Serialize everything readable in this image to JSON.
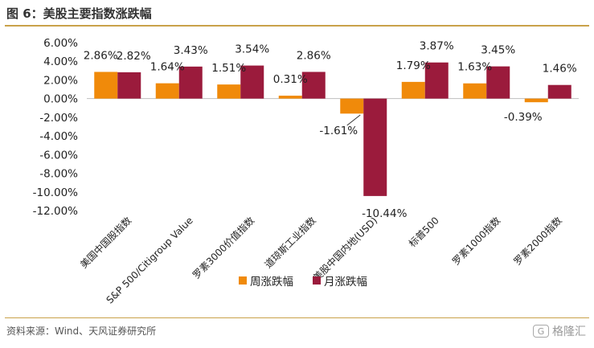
{
  "header": {
    "title": "图 6：美股主要指数涨跌幅"
  },
  "footer": {
    "source": "资料来源：Wind、天风证券研究所",
    "watermark": "格隆汇",
    "watermark_badge": "G"
  },
  "colors": {
    "weekly": "#f08a0a",
    "monthly": "#9b1b3c",
    "title_rule": "#c9a24a"
  },
  "chart_data": {
    "type": "bar",
    "categories": [
      "美国中国股指数",
      "S&P 500/Citigroup Value",
      "罗素3000价值指数",
      "道琼斯工业指数",
      "美股中国内地(USD)",
      "标普500",
      "罗素1000指数",
      "罗素2000指数"
    ],
    "series": [
      {
        "name": "周涨跌幅",
        "values": [
          2.86,
          1.64,
          1.51,
          0.31,
          -1.61,
          1.79,
          1.63,
          -0.39
        ],
        "labels": [
          "2.86%",
          "1.64%",
          "1.51%",
          "0.31%",
          "-1.61%",
          "1.79%",
          "1.63%",
          "-0.39%"
        ]
      },
      {
        "name": "月涨跌幅",
        "values": [
          2.82,
          3.43,
          3.54,
          2.86,
          -10.44,
          3.87,
          3.45,
          1.46
        ],
        "labels": [
          "2.82%",
          "3.43%",
          "3.54%",
          "2.86%",
          "-10.44%",
          "3.87%",
          "3.45%",
          "1.46%"
        ]
      }
    ],
    "yticks": [
      "6.00%",
      "4.00%",
      "2.00%",
      "0.00%",
      "-2.00%",
      "-4.00%",
      "-6.00%",
      "-8.00%",
      "-10.00%",
      "-12.00%"
    ],
    "ylim": [
      -12,
      6
    ],
    "grid": false,
    "legend_position": "bottom"
  }
}
